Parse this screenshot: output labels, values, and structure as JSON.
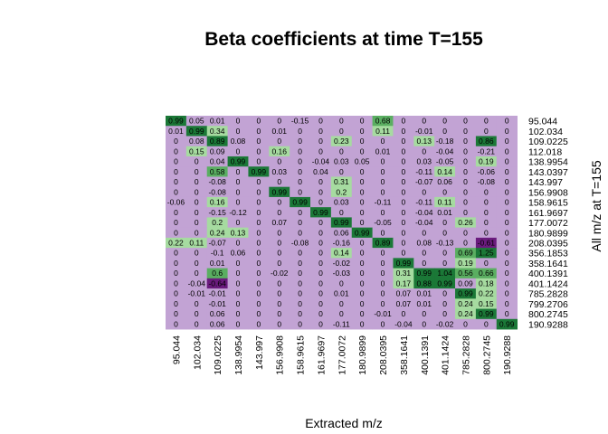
{
  "chart_data": {
    "type": "heatmap",
    "title": "Beta coefficients at time T=155",
    "xlabel": "Extracted m/z",
    "ylabel": "All m/z at T=155",
    "x_categories": [
      "95.044",
      "102.034",
      "109.0225",
      "138.9954",
      "143.997",
      "156.9908",
      "158.9615",
      "161.9697",
      "177.0072",
      "180.9899",
      "208.0395",
      "358.1641",
      "400.1391",
      "401.1424",
      "785.2828",
      "800.2745",
      "190.9288"
    ],
    "y_categories": [
      "95.044",
      "102.034",
      "109.0225",
      "112.018",
      "138.9954",
      "143.0397",
      "143.997",
      "156.9908",
      "158.9615",
      "161.9697",
      "177.0072",
      "180.9899",
      "208.0395",
      "356.1853",
      "358.1641",
      "400.1391",
      "401.1424",
      "785.2828",
      "799.2706",
      "800.2745",
      "190.9288"
    ],
    "values": [
      [
        "0.99",
        "0.05",
        "0.01",
        "0",
        "0",
        "0",
        "-0.15",
        "0",
        "0",
        "0",
        "0.68",
        "0",
        "0",
        "0",
        "0",
        "0",
        "0"
      ],
      [
        "0.01",
        "0.99",
        "0.34",
        "0",
        "0",
        "0.01",
        "0",
        "0",
        "0",
        "0",
        "0.11",
        "0",
        "-0.01",
        "0",
        "0",
        "0",
        "0"
      ],
      [
        "0",
        "0.08",
        "0.89",
        "0.08",
        "0",
        "0",
        "0",
        "0",
        "0.23",
        "0",
        "0",
        "0",
        "0.13",
        "-0.18",
        "0",
        "0.86",
        "0"
      ],
      [
        "0",
        "0.15",
        "0.09",
        "0",
        "0",
        "0.16",
        "0",
        "0",
        "0",
        "0",
        "0.01",
        "0",
        "0",
        "-0.04",
        "0",
        "-0.21",
        "0"
      ],
      [
        "0",
        "0",
        "0.04",
        "0.99",
        "0",
        "0",
        "0",
        "-0.04",
        "0.03",
        "0.05",
        "0",
        "0",
        "0.03",
        "-0.05",
        "0",
        "0.19",
        "0"
      ],
      [
        "0",
        "0",
        "0.58",
        "0",
        "0.99",
        "0.03",
        "0",
        "0.04",
        "0",
        "0",
        "0",
        "0",
        "-0.11",
        "0.14",
        "0",
        "-0.06",
        "0"
      ],
      [
        "0",
        "0",
        "-0.08",
        "0",
        "0",
        "0",
        "0",
        "0",
        "0.31",
        "0",
        "0",
        "0",
        "-0.07",
        "0.06",
        "0",
        "-0.08",
        "0"
      ],
      [
        "0",
        "0",
        "-0.08",
        "0",
        "0",
        "0.99",
        "0",
        "0",
        "0.2",
        "0",
        "0",
        "0",
        "0",
        "0",
        "0",
        "0",
        "0"
      ],
      [
        "-0.06",
        "0",
        "0.16",
        "0",
        "0",
        "0",
        "0.99",
        "0",
        "0.03",
        "0",
        "-0.11",
        "0",
        "-0.11",
        "0.11",
        "0",
        "0",
        "0"
      ],
      [
        "0",
        "0",
        "-0.15",
        "-0.12",
        "0",
        "0",
        "0",
        "0.99",
        "0",
        "0",
        "0",
        "0",
        "-0.04",
        "0.01",
        "0",
        "0",
        "0"
      ],
      [
        "0",
        "0",
        "0.2",
        "0",
        "0",
        "0.07",
        "0",
        "0",
        "0.99",
        "0",
        "-0.05",
        "0",
        "-0.04",
        "0",
        "0.26",
        "0",
        "0"
      ],
      [
        "0",
        "0",
        "0.24",
        "0.13",
        "0",
        "0",
        "0",
        "0",
        "0.06",
        "0.99",
        "0",
        "0",
        "0",
        "0",
        "0",
        "0",
        "0"
      ],
      [
        "0.22",
        "0.11",
        "-0.07",
        "0",
        "0",
        "0",
        "-0.08",
        "0",
        "-0.16",
        "0",
        "0.89",
        "0",
        "0.08",
        "-0.13",
        "0",
        "-0.61",
        "0"
      ],
      [
        "0",
        "0",
        "-0.1",
        "0.06",
        "0",
        "0",
        "0",
        "0",
        "0.14",
        "0",
        "0",
        "0",
        "0",
        "0",
        "0.69",
        "1.25",
        "0"
      ],
      [
        "0",
        "0",
        "0.01",
        "0",
        "0",
        "0",
        "0",
        "0",
        "-0.02",
        "0",
        "0",
        "0.99",
        "0",
        "0",
        "0.19",
        "0",
        "0"
      ],
      [
        "0",
        "0",
        "0.6",
        "0",
        "0",
        "-0.02",
        "0",
        "0",
        "-0.03",
        "0",
        "0",
        "0.31",
        "0.99",
        "1.04",
        "0.56",
        "0.66",
        "0"
      ],
      [
        "0",
        "-0.04",
        "-0.64",
        "0",
        "0",
        "0",
        "0",
        "0",
        "0",
        "0",
        "0",
        "0.17",
        "0.88",
        "0.99",
        "0.09",
        "0.18",
        "0"
      ],
      [
        "0",
        "-0.01",
        "-0.01",
        "0",
        "0",
        "0",
        "0",
        "0",
        "0.01",
        "0",
        "0",
        "0.07",
        "0.01",
        "0",
        "0.99",
        "0.22",
        "0"
      ],
      [
        "0",
        "0",
        "-0.01",
        "0",
        "0",
        "0",
        "0",
        "0",
        "0",
        "0",
        "0",
        "0.07",
        "0.01",
        "0",
        "0.24",
        "0.15",
        "0"
      ],
      [
        "0",
        "0",
        "0.06",
        "0",
        "0",
        "0",
        "0",
        "0",
        "0",
        "0",
        "-0.01",
        "0",
        "0",
        "0",
        "0.24",
        "0.99",
        "0"
      ],
      [
        "0",
        "0",
        "0.06",
        "0",
        "0",
        "0",
        "0",
        "0",
        "-0.11",
        "0",
        "0",
        "-0.04",
        "0",
        "-0.02",
        "0",
        "0",
        "0.99"
      ]
    ],
    "colors": {
      "low": "#6a1b7d",
      "neutral": "#c2a3d4",
      "light_positive": "#a6dba0",
      "mid_positive": "#5aae61",
      "high_positive": "#1b7837"
    },
    "legend": "none",
    "grid": false
  }
}
